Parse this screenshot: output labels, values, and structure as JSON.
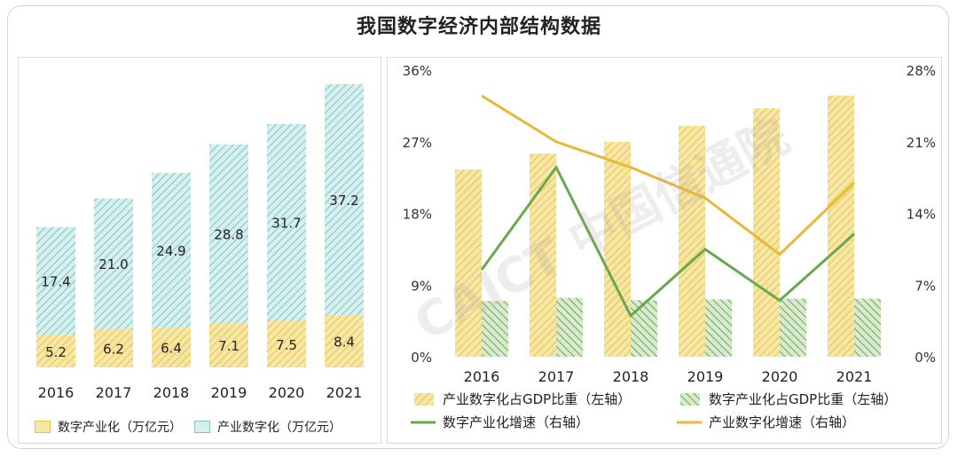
{
  "title": "我国数字经济内部结构数据",
  "watermark": "CAICT 中国信通院",
  "colors": {
    "yellow_fill": "#f6e7a6",
    "yellow_stripe": "#e9c24e",
    "teal_fill": "#d8efef",
    "teal_stripe": "#7cc3c3",
    "green_fill": "#d9ead0",
    "green_stripe": "#6aa84f",
    "green_line": "#6aa84f",
    "yellow_line": "#e8b83a"
  },
  "chart_data": [
    {
      "type": "bar",
      "stacked": true,
      "categories": [
        "2016",
        "2017",
        "2018",
        "2019",
        "2020",
        "2021"
      ],
      "series": [
        {
          "name": "数字产业化（万亿元）",
          "values": [
            5.2,
            6.2,
            6.4,
            7.1,
            7.5,
            8.4
          ]
        },
        {
          "name": "产业数字化（万亿元）",
          "values": [
            17.4,
            21.0,
            24.9,
            28.8,
            31.7,
            37.2
          ]
        }
      ],
      "value_labels": {
        "数字产业化（万亿元）": [
          "5.2",
          "6.2",
          "6.4",
          "7.1",
          "7.5",
          "8.4"
        ],
        "产业数字化（万亿元）": [
          "17.4",
          "21.0",
          "24.9",
          "28.8",
          "31.7",
          "37.2"
        ]
      },
      "ylim": [
        0,
        47
      ],
      "legend_position": "bottom"
    },
    {
      "type": "bar",
      "categories": [
        "2016",
        "2017",
        "2018",
        "2019",
        "2020",
        "2021"
      ],
      "series": [
        {
          "name": "产业数字化占GDP比重（左轴）",
          "axis": "left",
          "kind": "bar",
          "values": [
            23.5,
            25.5,
            27.0,
            29.0,
            31.2,
            32.8
          ]
        },
        {
          "name": "数字产业化占GDP比重（左轴）",
          "axis": "left",
          "kind": "bar",
          "values": [
            7.0,
            7.4,
            7.1,
            7.2,
            7.3,
            7.3
          ]
        },
        {
          "name": "数字产业化增速（右轴）",
          "axis": "right",
          "kind": "line",
          "values": [
            8.5,
            18.5,
            4.0,
            10.5,
            5.5,
            12.0
          ]
        },
        {
          "name": "产业数字化增速（右轴）",
          "axis": "right",
          "kind": "line",
          "values": [
            25.5,
            21.0,
            18.5,
            15.5,
            10.0,
            17.0
          ]
        }
      ],
      "left_axis": {
        "ticks": [
          "0%",
          "9%",
          "18%",
          "27%",
          "36%"
        ],
        "range": [
          0,
          36
        ]
      },
      "right_axis": {
        "ticks": [
          "0%",
          "7%",
          "14%",
          "21%",
          "28%"
        ],
        "range": [
          0,
          28
        ]
      },
      "legend_position": "bottom"
    }
  ]
}
